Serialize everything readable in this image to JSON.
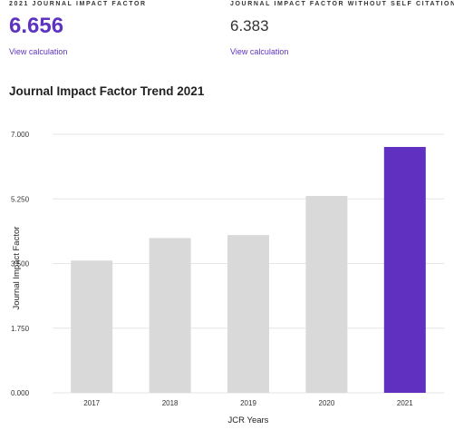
{
  "metrics": {
    "impact_factor": {
      "label": "2021 JOURNAL IMPACT FACTOR",
      "value": "6.656",
      "link": "View calculation"
    },
    "without_self_citations": {
      "label": "JOURNAL IMPACT FACTOR WITHOUT SELF CITATIONS",
      "value": "6.383",
      "link": "View calculation"
    }
  },
  "chart_title": "Journal Impact Factor Trend 2021",
  "colors": {
    "accent": "#5e33bf",
    "bar_default": "#d9d9d9",
    "bar_highlight": "#6030c0",
    "gridline": "#e6e6e6"
  },
  "chart_data": {
    "type": "bar",
    "title": "Journal Impact Factor Trend 2021",
    "categories": [
      "2017",
      "2018",
      "2019",
      "2020",
      "2021"
    ],
    "values": [
      3.58,
      4.19,
      4.27,
      5.33,
      6.656
    ],
    "highlight_index": 4,
    "xlabel": "JCR Years",
    "ylabel": "Journal Impact Factor",
    "ylim": [
      0,
      7
    ],
    "yticks": [
      "0.000",
      "1.750",
      "3.500",
      "5.250",
      "7.000"
    ],
    "ytick_values": [
      0,
      1.75,
      3.5,
      5.25,
      7
    ],
    "grid": true,
    "legend": "none"
  }
}
